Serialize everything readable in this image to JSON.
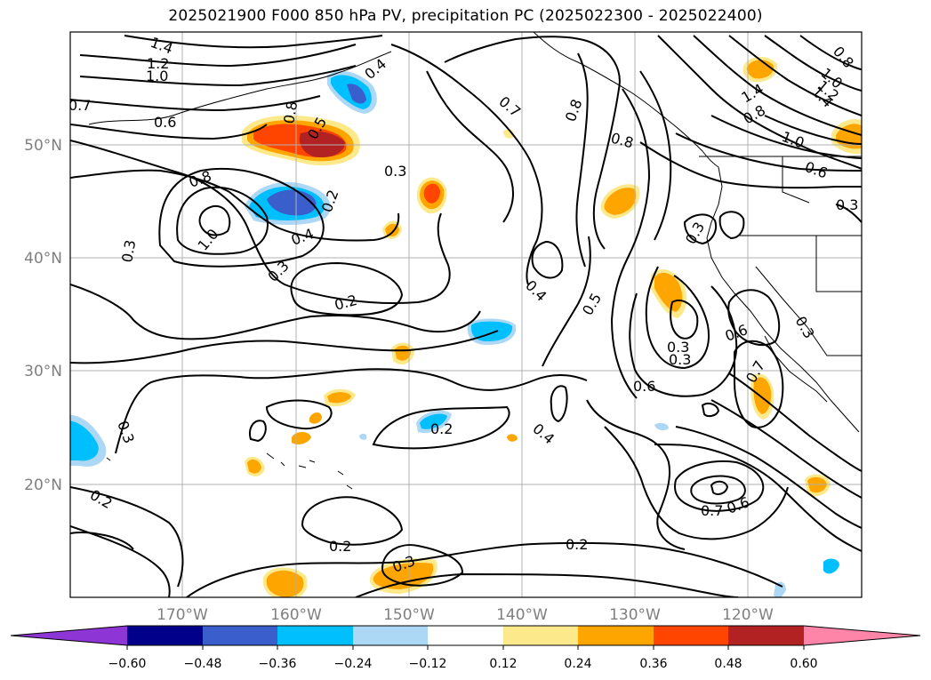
{
  "title": "2025021900 F000 850 hPa PV, precipitation PC (2025022300 - 2025022400)",
  "map": {
    "lat_labels": [
      "50°N",
      "40°N",
      "30°N",
      "20°N"
    ],
    "lon_labels": [
      "170°W",
      "160°W",
      "150°W",
      "140°W",
      "130°W",
      "120°W"
    ],
    "contour_labels": [
      "1.4",
      "1.2",
      "1.0",
      "0.7",
      "0.6",
      "0.8",
      "0.5",
      "0.3",
      "0.4",
      "0.2",
      "0.8",
      "1.0",
      "0.3",
      "0.4",
      "0.3",
      "0.2",
      "0.7",
      "0.8",
      "0.8",
      "0.4",
      "0.5",
      "0.3",
      "0.3",
      "0.3",
      "0.6",
      "0.6",
      "0.7",
      "0.4",
      "0.2",
      "0.3",
      "0.2",
      "0.2",
      "0.3",
      "0.2",
      "0.7",
      "0.6",
      "1.4",
      "1.2",
      "1.0",
      "0.8",
      "1.4",
      "0.8",
      "1.0",
      "0.6",
      "0.3",
      "0.3"
    ],
    "colors": {
      "neg_extreme": "#8e35d6",
      "neg_060": "#00008b",
      "neg_048": "#3a5fcd",
      "neg_036": "#00bfff",
      "neg_024": "#add8f5",
      "neutral": "#ffffff",
      "pos_012": "#fbe98c",
      "pos_024": "#ffa500",
      "pos_036": "#ff4500",
      "pos_048": "#b22222",
      "pos_extreme": "#ff85a8"
    }
  },
  "colorbar": {
    "ticks": [
      "−0.60",
      "−0.48",
      "−0.36",
      "−0.24",
      "−0.12",
      "0.12",
      "0.24",
      "0.36",
      "0.48",
      "0.60"
    ]
  }
}
